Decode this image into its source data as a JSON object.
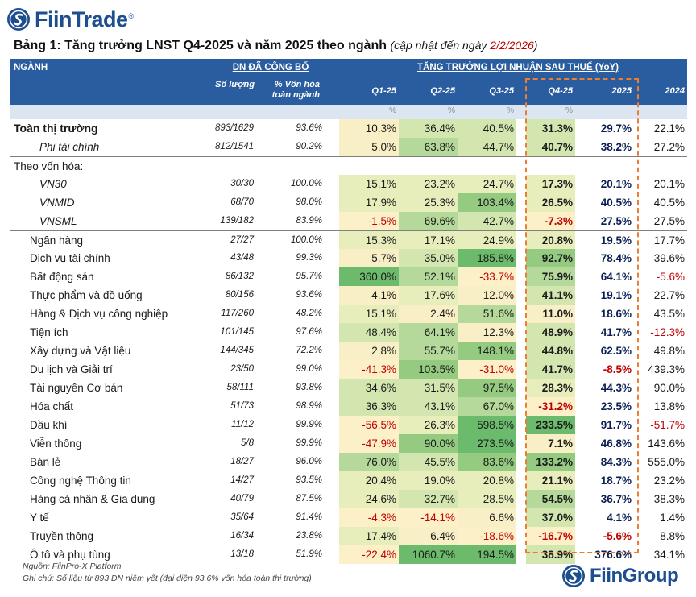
{
  "brand": {
    "name": "FiinTrade",
    "reg": "®",
    "footer_name": "FiinGroup"
  },
  "title": {
    "main": "Bảng 1: Tăng trưởng LNST Q4-2025 và năm 2025 theo ngành",
    "sub_prefix": "(cập nhật đến ngày ",
    "date": "2/2/2026",
    "sub_suffix": ")"
  },
  "header": {
    "sector": "NGÀNH",
    "group1": "DN ĐÃ CÔNG BỐ",
    "group2": "TĂNG TRƯỞNG LỢI NHUẬN SAU THUẾ (YoY)",
    "count": "Số lượng",
    "cap_share_1": "% Vốn hóa",
    "cap_share_2": "toàn ngành",
    "periods": [
      "Q1-25",
      "Q2-25",
      "Q3-25",
      "Q4-25",
      "2025",
      "2024"
    ],
    "unit": "%"
  },
  "colors": {
    "header_bg": "#2a5d9f",
    "negative": "#c00000",
    "highlight_box": "#ed7d31",
    "y2025_text": "#0b1f55"
  },
  "rows": [
    {
      "name": "Toàn thị trường",
      "style": "bold",
      "count": "893/1629",
      "pct": "93.6%",
      "q1": "10.3%",
      "q2": "36.4%",
      "q3": "40.5%",
      "q4": "31.3%",
      "y25": "29.7%",
      "y24": "22.1%"
    },
    {
      "name": "Phi tài chính",
      "style": "ind2",
      "count": "812/1541",
      "pct": "90.2%",
      "q1": "5.0%",
      "q2": "63.8%",
      "q3": "44.7%",
      "q4": "40.7%",
      "y25": "38.2%",
      "y24": "27.2%"
    },
    {
      "name": "Theo vốn hóa:",
      "style": "label",
      "count": "",
      "pct": "",
      "q1": "",
      "q2": "",
      "q3": "",
      "q4": "",
      "y25": "",
      "y24": ""
    },
    {
      "name": "VN30",
      "style": "ind2",
      "count": "30/30",
      "pct": "100.0%",
      "q1": "15.1%",
      "q2": "23.2%",
      "q3": "24.7%",
      "q4": "17.3%",
      "y25": "20.1%",
      "y24": "20.1%"
    },
    {
      "name": "VNMID",
      "style": "ind2",
      "count": "68/70",
      "pct": "98.0%",
      "q1": "17.9%",
      "q2": "25.3%",
      "q3": "103.4%",
      "q4": "26.5%",
      "y25": "40.5%",
      "y24": "40.5%"
    },
    {
      "name": "VNSML",
      "style": "ind2",
      "count": "139/182",
      "pct": "83.9%",
      "q1": "-1.5%",
      "q2": "69.6%",
      "q3": "42.7%",
      "q4": "-7.3%",
      "y25": "27.5%",
      "y24": "27.5%"
    },
    {
      "name": "Ngân hàng",
      "style": "ind1",
      "count": "27/27",
      "pct": "100.0%",
      "q1": "15.3%",
      "q2": "17.1%",
      "q3": "24.9%",
      "q4": "20.8%",
      "y25": "19.5%",
      "y24": "17.7%"
    },
    {
      "name": "Dịch vụ tài chính",
      "style": "ind1",
      "count": "43/48",
      "pct": "99.3%",
      "q1": "5.7%",
      "q2": "35.0%",
      "q3": "185.8%",
      "q4": "92.7%",
      "y25": "78.4%",
      "y24": "39.6%"
    },
    {
      "name": "Bất động sản",
      "style": "ind1",
      "count": "86/132",
      "pct": "95.7%",
      "q1": "360.0%",
      "q2": "52.1%",
      "q3": "-33.7%",
      "q4": "75.9%",
      "y25": "64.1%",
      "y24": "-5.6%"
    },
    {
      "name": "Thực phẩm và đồ uống",
      "style": "ind1",
      "count": "80/156",
      "pct": "93.6%",
      "q1": "4.1%",
      "q2": "17.6%",
      "q3": "12.0%",
      "q4": "41.1%",
      "y25": "19.1%",
      "y24": "22.7%"
    },
    {
      "name": "Hàng & Dịch vụ công nghiệp",
      "style": "ind1",
      "count": "117/260",
      "pct": "48.2%",
      "q1": "15.1%",
      "q2": "2.4%",
      "q3": "51.6%",
      "q4": "11.0%",
      "y25": "18.6%",
      "y24": "43.5%"
    },
    {
      "name": "Tiện ích",
      "style": "ind1",
      "count": "101/145",
      "pct": "97.6%",
      "q1": "48.4%",
      "q2": "64.1%",
      "q3": "12.3%",
      "q4": "48.9%",
      "y25": "41.7%",
      "y24": "-12.3%"
    },
    {
      "name": "Xây dựng và Vật liệu",
      "style": "ind1",
      "count": "144/345",
      "pct": "72.2%",
      "q1": "2.8%",
      "q2": "55.7%",
      "q3": "148.1%",
      "q4": "44.8%",
      "y25": "62.5%",
      "y24": "49.8%"
    },
    {
      "name": "Du lịch và Giải trí",
      "style": "ind1",
      "count": "23/50",
      "pct": "99.0%",
      "q1": "-41.3%",
      "q2": "103.5%",
      "q3": "-31.0%",
      "q4": "41.7%",
      "y25": "-8.5%",
      "y24": "439.3%"
    },
    {
      "name": "Tài nguyên Cơ bản",
      "style": "ind1",
      "count": "58/111",
      "pct": "93.8%",
      "q1": "34.6%",
      "q2": "31.5%",
      "q3": "97.5%",
      "q4": "28.3%",
      "y25": "44.3%",
      "y24": "90.0%"
    },
    {
      "name": "Hóa chất",
      "style": "ind1",
      "count": "51/73",
      "pct": "98.9%",
      "q1": "36.3%",
      "q2": "43.1%",
      "q3": "67.0%",
      "q4": "-31.2%",
      "y25": "23.5%",
      "y24": "13.8%"
    },
    {
      "name": "Dầu khí",
      "style": "ind1",
      "count": "11/12",
      "pct": "99.9%",
      "q1": "-56.5%",
      "q2": "26.3%",
      "q3": "598.5%",
      "q4": "233.5%",
      "y25": "91.7%",
      "y24": "-51.7%"
    },
    {
      "name": "Viễn thông",
      "style": "ind1",
      "count": "5/8",
      "pct": "99.9%",
      "q1": "-47.9%",
      "q2": "90.0%",
      "q3": "273.5%",
      "q4": "7.1%",
      "y25": "46.8%",
      "y24": "143.6%"
    },
    {
      "name": "Bán lẻ",
      "style": "ind1",
      "count": "18/27",
      "pct": "96.0%",
      "q1": "76.0%",
      "q2": "45.5%",
      "q3": "83.6%",
      "q4": "133.2%",
      "y25": "84.3%",
      "y24": "555.0%"
    },
    {
      "name": "Công nghệ Thông tin",
      "style": "ind1",
      "count": "14/27",
      "pct": "93.5%",
      "q1": "20.4%",
      "q2": "19.0%",
      "q3": "20.8%",
      "q4": "21.1%",
      "y25": "18.7%",
      "y24": "23.2%"
    },
    {
      "name": "Hàng cá nhân & Gia dụng",
      "style": "ind1",
      "count": "40/79",
      "pct": "87.5%",
      "q1": "24.6%",
      "q2": "32.7%",
      "q3": "28.5%",
      "q4": "54.5%",
      "y25": "36.7%",
      "y24": "38.3%"
    },
    {
      "name": "Y tế",
      "style": "ind1",
      "count": "35/64",
      "pct": "91.4%",
      "q1": "-4.3%",
      "q2": "-14.1%",
      "q3": "6.6%",
      "q4": "37.0%",
      "y25": "4.1%",
      "y24": "1.4%"
    },
    {
      "name": "Truyền thông",
      "style": "ind1",
      "count": "16/34",
      "pct": "23.8%",
      "q1": "17.4%",
      "q2": "6.4%",
      "q3": "-18.6%",
      "q4": "-16.7%",
      "y25": "-5.6%",
      "y24": "8.8%"
    },
    {
      "name": "Ô tô và phụ tùng",
      "style": "ind1",
      "count": "13/18",
      "pct": "51.9%",
      "q1": "-22.4%",
      "q2": "1060.7%",
      "q3": "194.5%",
      "q4": "38.9%",
      "y25": "376.6%",
      "y24": "34.1%"
    }
  ],
  "footer": {
    "source": "Nguồn: FiinPro-X Platform",
    "note": "Ghi chú: Số liệu từ 893 DN niêm yết (đại diện 93,6% vốn hóa toàn thị trường)"
  }
}
